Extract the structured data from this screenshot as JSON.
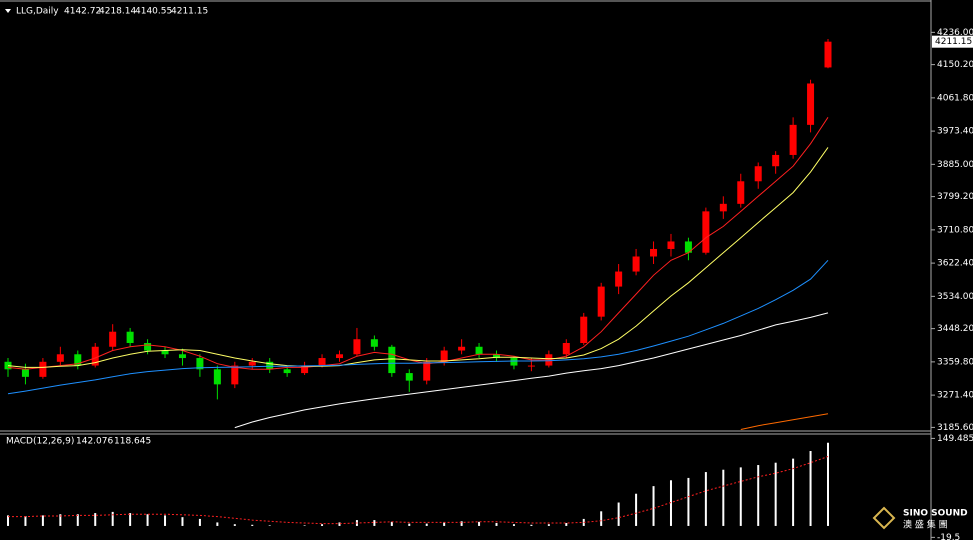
{
  "chart_data": [
    {
      "type": "candlestick",
      "title": "LLG,Daily",
      "up_color": "#ff0000",
      "down_color": "#00e000",
      "candles": [
        [
          3360,
          3370,
          3320,
          3340
        ],
        [
          3340,
          3355,
          3300,
          3320
        ],
        [
          3320,
          3370,
          3315,
          3360
        ],
        [
          3360,
          3400,
          3350,
          3380
        ],
        [
          3380,
          3390,
          3340,
          3350
        ],
        [
          3350,
          3410,
          3345,
          3400
        ],
        [
          3400,
          3460,
          3390,
          3440
        ],
        [
          3440,
          3450,
          3400,
          3410
        ],
        [
          3410,
          3420,
          3380,
          3390
        ],
        [
          3390,
          3400,
          3370,
          3380
        ],
        [
          3380,
          3395,
          3350,
          3370
        ],
        [
          3370,
          3380,
          3320,
          3340
        ],
        [
          3340,
          3350,
          3260,
          3300
        ],
        [
          3300,
          3360,
          3290,
          3350
        ],
        [
          3350,
          3370,
          3340,
          3360
        ],
        [
          3360,
          3370,
          3330,
          3340
        ],
        [
          3340,
          3350,
          3320,
          3330
        ],
        [
          3330,
          3360,
          3325,
          3350
        ],
        [
          3350,
          3380,
          3345,
          3370
        ],
        [
          3370,
          3390,
          3360,
          3380
        ],
        [
          3380,
          3450,
          3375,
          3420
        ],
        [
          3420,
          3430,
          3390,
          3400
        ],
        [
          3400,
          3405,
          3320,
          3330
        ],
        [
          3330,
          3340,
          3280,
          3310
        ],
        [
          3310,
          3370,
          3300,
          3360
        ],
        [
          3360,
          3400,
          3350,
          3390
        ],
        [
          3390,
          3420,
          3380,
          3400
        ],
        [
          3400,
          3410,
          3370,
          3380
        ],
        [
          3380,
          3390,
          3360,
          3370
        ],
        [
          3370,
          3375,
          3340,
          3350
        ],
        [
          3350,
          3370,
          3335,
          3350
        ],
        [
          3350,
          3390,
          3345,
          3380
        ],
        [
          3380,
          3420,
          3370,
          3410
        ],
        [
          3410,
          3490,
          3405,
          3480
        ],
        [
          3480,
          3570,
          3470,
          3560
        ],
        [
          3560,
          3620,
          3540,
          3600
        ],
        [
          3600,
          3660,
          3590,
          3640
        ],
        [
          3640,
          3680,
          3620,
          3660
        ],
        [
          3660,
          3700,
          3640,
          3680
        ],
        [
          3680,
          3690,
          3630,
          3650
        ],
        [
          3650,
          3770,
          3645,
          3760
        ],
        [
          3760,
          3800,
          3740,
          3780
        ],
        [
          3780,
          3860,
          3770,
          3840
        ],
        [
          3840,
          3890,
          3820,
          3880
        ],
        [
          3880,
          3920,
          3860,
          3910
        ],
        [
          3910,
          4010,
          3900,
          3990
        ],
        [
          3990,
          4110,
          3970,
          4100
        ],
        [
          4142.72,
          4218.14,
          4140.55,
          4211.15
        ]
      ],
      "lines": [
        {
          "color": "#ff2020",
          "values": [
            3345,
            3340,
            3345,
            3350,
            3355,
            3370,
            3390,
            3400,
            3405,
            3400,
            3390,
            3375,
            3355,
            3345,
            3340,
            3340,
            3345,
            3345,
            3350,
            3355,
            3375,
            3385,
            3380,
            3365,
            3355,
            3360,
            3370,
            3380,
            3380,
            3375,
            3365,
            3365,
            3375,
            3400,
            3440,
            3490,
            3540,
            3590,
            3630,
            3650,
            3690,
            3720,
            3760,
            3800,
            3840,
            3880,
            3940,
            4010
          ]
        },
        {
          "color": "#ffff66",
          "values": [
            3350,
            3345,
            3345,
            3348,
            3350,
            3358,
            3370,
            3380,
            3388,
            3390,
            3392,
            3390,
            3380,
            3370,
            3362,
            3355,
            3350,
            3348,
            3348,
            3350,
            3358,
            3365,
            3368,
            3365,
            3362,
            3362,
            3365,
            3368,
            3372,
            3372,
            3370,
            3368,
            3370,
            3378,
            3395,
            3420,
            3455,
            3495,
            3535,
            3570,
            3610,
            3650,
            3690,
            3730,
            3770,
            3810,
            3865,
            3930
          ]
        },
        {
          "color": "#1e90ff",
          "values": [
            3275,
            3282,
            3290,
            3298,
            3305,
            3312,
            3320,
            3328,
            3334,
            3338,
            3342,
            3344,
            3345,
            3346,
            3347,
            3348,
            3348,
            3349,
            3350,
            3351,
            3353,
            3355,
            3356,
            3356,
            3357,
            3358,
            3359,
            3360,
            3361,
            3362,
            3362,
            3363,
            3365,
            3368,
            3373,
            3380,
            3390,
            3402,
            3415,
            3428,
            3445,
            3462,
            3482,
            3502,
            3525,
            3550,
            3580,
            3630
          ]
        },
        {
          "color": "#ffffff",
          "values": [
            null,
            null,
            null,
            null,
            null,
            null,
            null,
            null,
            null,
            null,
            null,
            null,
            null,
            3185,
            3200,
            3212,
            3222,
            3232,
            3240,
            3248,
            3255,
            3262,
            3268,
            3274,
            3280,
            3286,
            3292,
            3298,
            3304,
            3310,
            3316,
            3322,
            3330,
            3336,
            3342,
            3350,
            3360,
            3370,
            3382,
            3394,
            3406,
            3418,
            3430,
            3444,
            3458,
            3468,
            3478,
            3490
          ]
        },
        {
          "color": "#ff6a00",
          "values": [
            null,
            null,
            null,
            null,
            null,
            null,
            null,
            null,
            null,
            null,
            null,
            null,
            null,
            null,
            null,
            null,
            null,
            null,
            null,
            null,
            null,
            null,
            null,
            null,
            null,
            null,
            null,
            null,
            null,
            null,
            null,
            null,
            null,
            null,
            null,
            null,
            null,
            null,
            null,
            null,
            null,
            null,
            3180,
            3190,
            3198,
            3206,
            3214,
            3222
          ]
        }
      ],
      "ylim": [
        3176,
        4322
      ],
      "yticks": [
        {
          "value": 4236,
          "label": "4236.00"
        },
        {
          "value": 4150.2,
          "label": "4150.20"
        },
        {
          "value": 4061.8,
          "label": "4061.80"
        },
        {
          "value": 3973.4,
          "label": "3973.40"
        },
        {
          "value": 3885,
          "label": "3885.00"
        },
        {
          "value": 3799.2,
          "label": "3799.20"
        },
        {
          "value": 3710.8,
          "label": "3710.80"
        },
        {
          "value": 3622.4,
          "label": "3622.40"
        },
        {
          "value": 3534,
          "label": "3534.00"
        },
        {
          "value": 3448.2,
          "label": "3448.20"
        },
        {
          "value": 3359.8,
          "label": "3359.80"
        },
        {
          "value": 3271.4,
          "label": "3271.40"
        },
        {
          "value": 3185.6,
          "label": "3185.60"
        }
      ]
    },
    {
      "type": "macd",
      "title": "MACD(12,26,9)",
      "hist_color": "#ffffff",
      "signal_color": "#ff2020",
      "histogram": [
        18,
        17,
        18,
        20,
        20,
        22,
        24,
        22,
        20,
        18,
        15,
        12,
        6,
        3,
        2,
        1,
        0,
        1,
        3,
        6,
        10,
        10,
        7,
        4,
        4,
        6,
        8,
        7,
        5,
        3,
        2,
        3,
        5,
        12,
        25,
        40,
        55,
        68,
        78,
        82,
        92,
        96,
        100,
        104,
        108,
        115,
        128,
        142.076
      ],
      "signal": [
        16,
        16,
        17,
        17,
        18,
        18,
        19,
        20,
        20,
        20,
        19,
        18,
        16,
        13,
        10,
        8,
        6,
        5,
        4,
        4,
        5,
        6,
        7,
        6,
        6,
        6,
        6,
        7,
        7,
        6,
        5,
        5,
        5,
        6,
        9,
        14,
        22,
        30,
        40,
        50,
        60,
        68,
        76,
        84,
        90,
        98,
        108,
        118.645
      ],
      "ylim": [
        -24,
        157
      ],
      "yticks": [
        149.485,
        -19.5
      ]
    }
  ],
  "watermark": {
    "name": "SINO SOUND",
    "chinese": "澳 盛 集 團"
  }
}
